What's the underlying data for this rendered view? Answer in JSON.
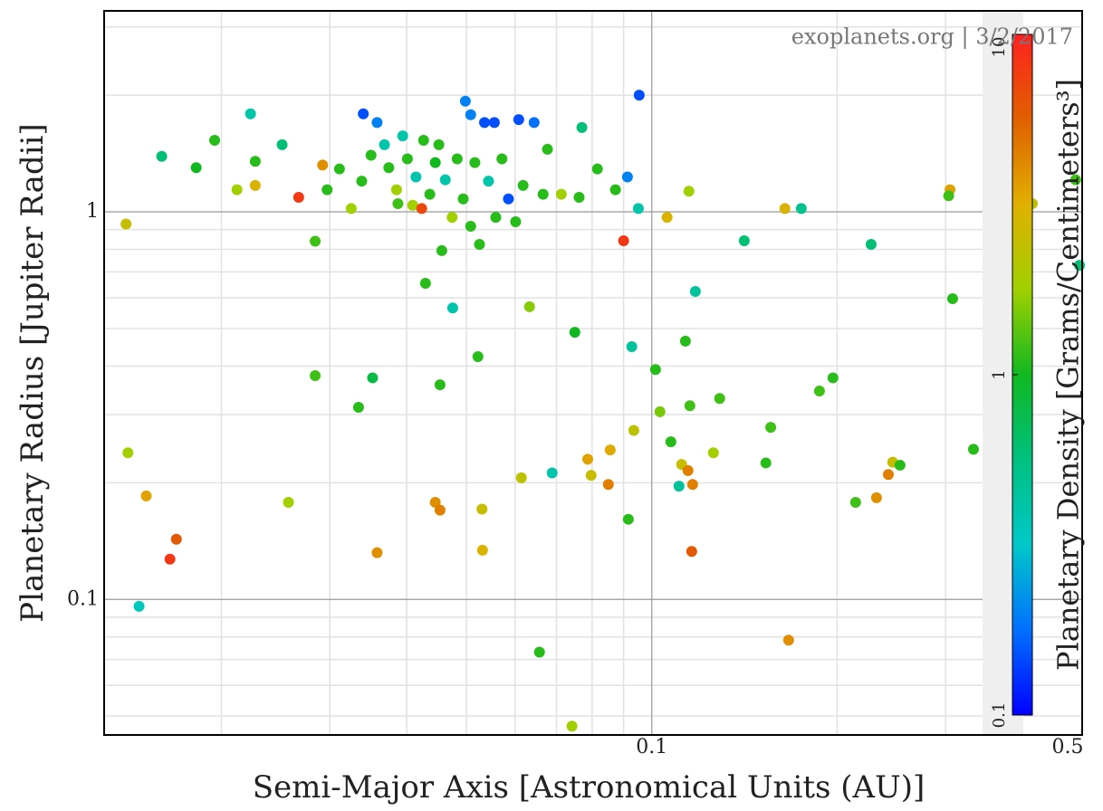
{
  "chart_data": {
    "type": "scatter",
    "annotation": "exoplanets.org | 3/2/2017",
    "x_label": "Semi-Major Axis [Astronomical Units (AU)]",
    "y_label": "Planetary Radius [Jupiter Radii]",
    "xlim": [
      0.0129,
      0.5
    ],
    "ylim": [
      0.0447,
      3.3
    ],
    "xticks": [
      0.1,
      0.5
    ],
    "yticks": [
      0.1,
      1
    ],
    "xminor": [
      0.02,
      0.03,
      0.04,
      0.05,
      0.06,
      0.07,
      0.08,
      0.09,
      0.2,
      0.3,
      0.4
    ],
    "yminor": [
      0.05,
      0.06,
      0.07,
      0.08,
      0.09,
      0.2,
      0.3,
      0.4,
      0.5,
      0.6,
      0.7,
      0.8,
      0.9,
      2,
      3
    ],
    "x_log": true,
    "y_log": true,
    "grid": true,
    "colorbar": {
      "label": "Planetary Density [Grams/Centimeters³]",
      "lim": [
        0.1,
        10
      ],
      "ticks": [
        0.1,
        1,
        10
      ],
      "log": true,
      "colors": [
        "#0000ff",
        "#0070ff",
        "#00c8c8",
        "#00c080",
        "#10b820",
        "#a0d000",
        "#e0b000",
        "#e06000",
        "#ff2020"
      ]
    },
    "x": [
      0.014,
      0.0141,
      0.016,
      0.0151,
      0.0169,
      0.0165,
      0.0147,
      0.0182,
      0.0195,
      0.0223,
      0.0212,
      0.0227,
      0.0227,
      0.0251,
      0.0267,
      0.0292,
      0.0284,
      0.0257,
      0.0284,
      0.0334,
      0.0352,
      0.0358,
      0.034,
      0.0358,
      0.0387,
      0.0409,
      0.0429,
      0.0423,
      0.0445,
      0.0453,
      0.0445,
      0.0453,
      0.0456,
      0.0498,
      0.0508,
      0.0535,
      0.0555,
      0.0608,
      0.0644,
      0.0475,
      0.0522,
      0.0531,
      0.053,
      0.0614,
      0.0633,
      0.0657,
      0.0689,
      0.075,
      0.0742,
      0.0787,
      0.0797,
      0.085,
      0.0856,
      0.077,
      0.09,
      0.0916,
      0.0928,
      0.0935,
      0.0954,
      0.0913,
      0.0951,
      0.1014,
      0.1031,
      0.1059,
      0.1074,
      0.1107,
      0.1118,
      0.1134,
      0.1149,
      0.1153,
      0.1145,
      0.1165,
      0.1161,
      0.1177,
      0.1259,
      0.1289,
      0.1413,
      0.1532,
      0.156,
      0.1645,
      0.1749,
      0.1668,
      0.1872,
      0.1969,
      0.2143,
      0.2271,
      0.2317,
      0.2422,
      0.2462,
      0.253,
      0.305,
      0.3035,
      0.308,
      0.333,
      0.352,
      0.371,
      0.415,
      0.488,
      0.495,
      0.0297,
      0.0311,
      0.0325,
      0.0338,
      0.035,
      0.0368,
      0.0374,
      0.0385,
      0.0394,
      0.0401,
      0.0414,
      0.0426,
      0.0436,
      0.0451,
      0.0462,
      0.0474,
      0.0483,
      0.0494,
      0.0508,
      0.0516,
      0.0525,
      0.0543,
      0.0558,
      0.0571,
      0.0585,
      0.0601,
      0.0618,
      0.0666,
      0.0677,
      0.0713,
      0.0762,
      0.0816,
      0.0873
    ],
    "values": [
      0.93,
      0.239,
      1.39,
      0.185,
      0.143,
      0.127,
      0.096,
      1.3,
      1.53,
      1.79,
      1.14,
      1.17,
      1.35,
      1.49,
      1.09,
      1.32,
      0.378,
      0.178,
      0.84,
      0.313,
      0.373,
      0.132,
      1.79,
      1.7,
      1.05,
      1.04,
      0.654,
      1.02,
      1.34,
      0.358,
      0.178,
      0.17,
      0.794,
      1.93,
      1.78,
      1.7,
      1.7,
      1.73,
      1.7,
      0.565,
      0.423,
      0.134,
      0.171,
      0.206,
      0.569,
      0.0731,
      0.212,
      0.489,
      0.0471,
      0.23,
      0.209,
      0.198,
      0.243,
      1.65,
      0.842,
      0.161,
      0.449,
      0.273,
      2.0,
      1.23,
      1.02,
      0.392,
      0.305,
      0.968,
      0.255,
      0.196,
      0.223,
      0.464,
      1.13,
      0.316,
      0.215,
      0.198,
      0.133,
      0.623,
      0.239,
      0.33,
      0.842,
      0.225,
      0.278,
      1.02,
      1.02,
      0.0785,
      0.345,
      0.373,
      0.178,
      0.824,
      0.183,
      0.21,
      0.226,
      0.222,
      1.14,
      1.1,
      0.597,
      0.244,
      0.244,
      0.318,
      1.05,
      1.21,
      0.728,
      1.14,
      1.29,
      1.02,
      1.2,
      1.4,
      1.49,
      1.3,
      1.14,
      1.57,
      1.37,
      1.23,
      1.53,
      1.11,
      1.49,
      1.21,
      0.968,
      1.37,
      1.08,
      0.918,
      1.34,
      0.824,
      1.2,
      0.968,
      1.37,
      1.08,
      0.943,
      1.17,
      1.11,
      1.45,
      1.11,
      1.09,
      1.29,
      1.14
    ],
    "density": [
      2.5,
      1.8,
      0.6,
      3.5,
      6,
      8,
      0.35,
      1,
      1.1,
      0.4,
      1.8,
      3,
      1.1,
      0.6,
      8,
      4,
      1.2,
      1.8,
      1.2,
      1.1,
      0.8,
      4,
      0.15,
      0.2,
      1.2,
      1.8,
      1.1,
      7,
      1,
      1.1,
      4,
      4.5,
      1.1,
      0.2,
      0.2,
      0.15,
      0.15,
      0.15,
      0.18,
      0.4,
      1.1,
      3,
      2.5,
      2.3,
      1.6,
      1.1,
      0.4,
      1,
      1.8,
      3.5,
      2.5,
      4.5,
      3.3,
      0.6,
      8,
      1.1,
      0.45,
      2.3,
      0.15,
      0.2,
      0.4,
      1.1,
      1.5,
      3,
      1.1,
      0.45,
      2.5,
      1.1,
      1.8,
      1.2,
      4.5,
      4.5,
      6,
      0.45,
      1.8,
      1.2,
      0.6,
      1.1,
      1.2,
      3,
      0.5,
      4,
      1.2,
      1.1,
      1.2,
      0.6,
      4,
      4.5,
      2.5,
      1.1,
      3.5,
      1.2,
      1.1,
      1.1,
      2,
      0.7,
      2.3,
      1.2,
      0.6,
      1.1,
      1.1,
      1.8,
      1.1,
      1.1,
      0.4,
      1.1,
      1.8,
      0.4,
      1.1,
      0.4,
      1.1,
      1.1,
      1.1,
      0.4,
      1.8,
      1.1,
      1.1,
      1.1,
      1.1,
      1.1,
      0.4,
      1.1,
      1.1,
      0.15,
      1.1,
      1.1,
      1.1,
      1.1,
      1.8,
      1.1,
      1.1,
      1.1
    ]
  }
}
